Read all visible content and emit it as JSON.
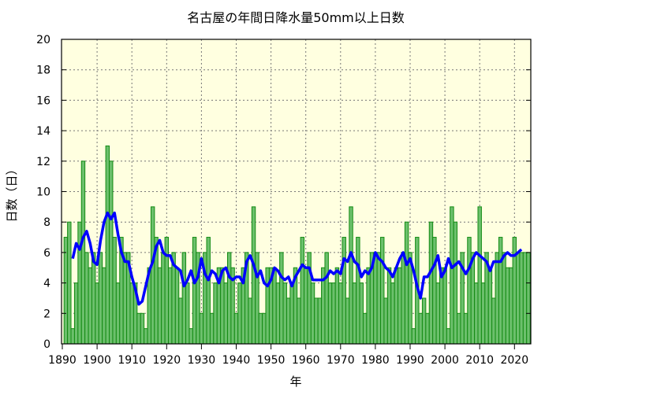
{
  "chart_data": {
    "type": "bar",
    "title": "名古屋の年間日降水量50mm以上日数",
    "xlabel": "年",
    "ylabel": "日数（日）",
    "xlim": [
      1890,
      2025
    ],
    "ylim": [
      0,
      20
    ],
    "x_ticks": [
      1890,
      1900,
      1910,
      1920,
      1930,
      1940,
      1950,
      1960,
      1970,
      1980,
      1990,
      2000,
      2010,
      2020
    ],
    "y_ticks": [
      0,
      2,
      4,
      6,
      8,
      10,
      12,
      14,
      16,
      18,
      20
    ],
    "grid": true,
    "start_year": 1891,
    "values": [
      7,
      8,
      1,
      4,
      8,
      12,
      6,
      5,
      6,
      4,
      6,
      5,
      13,
      12,
      7,
      4,
      7,
      6,
      6,
      4,
      4,
      2,
      2,
      1,
      5,
      9,
      7,
      5,
      6,
      7,
      5,
      6,
      5,
      3,
      6,
      4,
      1,
      7,
      6,
      2,
      6,
      7,
      2,
      4,
      5,
      5,
      4,
      6,
      5,
      2,
      4,
      5,
      6,
      3,
      9,
      6,
      2,
      2,
      5,
      5,
      5,
      4,
      6,
      4,
      3,
      4,
      5,
      3,
      7,
      5,
      6,
      4,
      3,
      3,
      5,
      6,
      4,
      4,
      5,
      4,
      7,
      3,
      9,
      4,
      7,
      4,
      2,
      5,
      6,
      6,
      6,
      7,
      3,
      5,
      4,
      5,
      5,
      6,
      8,
      6,
      1,
      7,
      2,
      3,
      2,
      8,
      7,
      4,
      5,
      5,
      1,
      9,
      8,
      2,
      6,
      2,
      7,
      6,
      4,
      9,
      4,
      6,
      5,
      3,
      6,
      7,
      6,
      5,
      5,
      7,
      6,
      6,
      6,
      6
    ],
    "moving_average_window": 5,
    "colors": {
      "bar_fill": "#6cc06c",
      "bar_edge": "#138a13",
      "line": "#0000ff",
      "background": "#ffffe0",
      "grid": "#777777"
    }
  }
}
